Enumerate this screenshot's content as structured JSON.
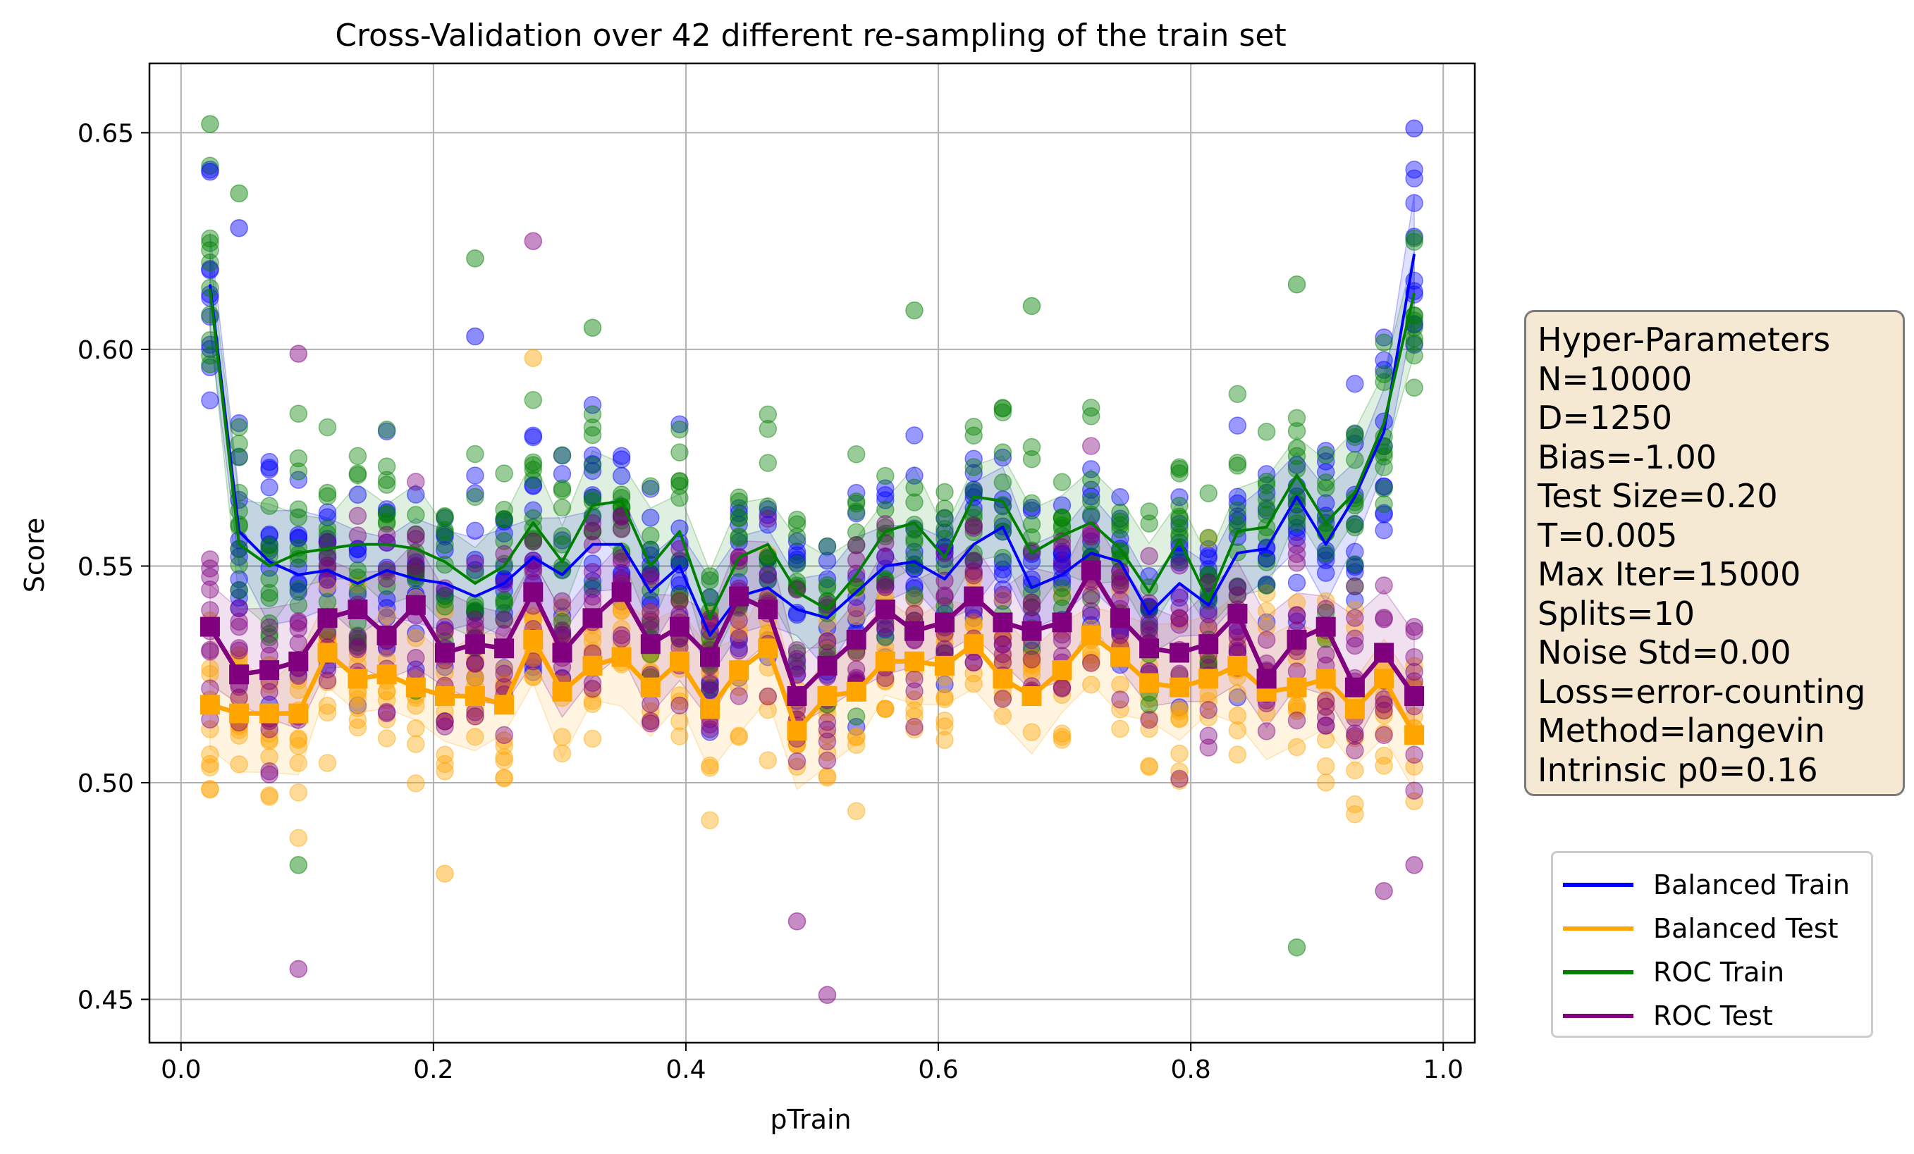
{
  "chart_data": {
    "type": "line",
    "title": "Cross-Validation over 42 different re-sampling of the train set",
    "xlabel": "pTrain",
    "ylabel": "Score",
    "xlim": [
      -0.025,
      1.025
    ],
    "ylim": [
      0.44,
      0.666
    ],
    "xticks": [
      "0.0",
      "0.2",
      "0.4",
      "0.6",
      "0.8",
      "1.0"
    ],
    "yticks": [
      "0.45",
      "0.50",
      "0.55",
      "0.60",
      "0.65"
    ],
    "grid": true,
    "legend_position": "right-bottom",
    "x": [
      0.023,
      0.046,
      0.07,
      0.093,
      0.116,
      0.14,
      0.163,
      0.186,
      0.209,
      0.233,
      0.256,
      0.279,
      0.302,
      0.326,
      0.349,
      0.372,
      0.395,
      0.419,
      0.442,
      0.465,
      0.488,
      0.512,
      0.535,
      0.558,
      0.581,
      0.605,
      0.628,
      0.651,
      0.674,
      0.698,
      0.721,
      0.744,
      0.767,
      0.791,
      0.814,
      0.837,
      0.86,
      0.884,
      0.907,
      0.93,
      0.953,
      0.977
    ],
    "series": [
      {
        "name": "Balanced Train",
        "color": "#0000ff",
        "marker": "none",
        "line_width": 3,
        "values": [
          0.615,
          0.558,
          0.551,
          0.548,
          0.549,
          0.546,
          0.549,
          0.547,
          0.546,
          0.543,
          0.546,
          0.552,
          0.548,
          0.555,
          0.555,
          0.544,
          0.55,
          0.534,
          0.543,
          0.545,
          0.54,
          0.538,
          0.544,
          0.55,
          0.551,
          0.547,
          0.555,
          0.559,
          0.545,
          0.548,
          0.553,
          0.551,
          0.539,
          0.546,
          0.541,
          0.553,
          0.554,
          0.566,
          0.555,
          0.566,
          0.581,
          0.622
        ]
      },
      {
        "name": "Balanced Test",
        "color": "#ffa500",
        "marker": "square",
        "line_width": 5,
        "values": [
          0.518,
          0.516,
          0.516,
          0.516,
          0.53,
          0.524,
          0.525,
          0.522,
          0.52,
          0.52,
          0.518,
          0.533,
          0.521,
          0.527,
          0.529,
          0.522,
          0.528,
          0.517,
          0.526,
          0.531,
          0.512,
          0.52,
          0.521,
          0.528,
          0.528,
          0.527,
          0.532,
          0.524,
          0.52,
          0.526,
          0.534,
          0.529,
          0.523,
          0.522,
          0.524,
          0.527,
          0.521,
          0.522,
          0.524,
          0.517,
          0.524,
          0.511
        ]
      },
      {
        "name": "ROC Train",
        "color": "#008000",
        "marker": "none",
        "line_width": 3,
        "values": [
          0.614,
          0.555,
          0.55,
          0.553,
          0.554,
          0.555,
          0.555,
          0.554,
          0.551,
          0.546,
          0.55,
          0.56,
          0.551,
          0.564,
          0.565,
          0.55,
          0.558,
          0.538,
          0.552,
          0.555,
          0.544,
          0.54,
          0.548,
          0.558,
          0.56,
          0.552,
          0.566,
          0.565,
          0.553,
          0.557,
          0.56,
          0.554,
          0.544,
          0.556,
          0.542,
          0.558,
          0.559,
          0.571,
          0.56,
          0.567,
          0.583,
          0.613
        ]
      },
      {
        "name": "ROC Test",
        "color": "#800080",
        "marker": "square",
        "line_width": 5,
        "values": [
          0.536,
          0.525,
          0.526,
          0.528,
          0.538,
          0.54,
          0.534,
          0.541,
          0.53,
          0.532,
          0.531,
          0.544,
          0.53,
          0.538,
          0.544,
          0.532,
          0.536,
          0.529,
          0.543,
          0.54,
          0.52,
          0.527,
          0.533,
          0.54,
          0.535,
          0.537,
          0.543,
          0.537,
          0.535,
          0.537,
          0.549,
          0.538,
          0.531,
          0.53,
          0.532,
          0.539,
          0.524,
          0.533,
          0.536,
          0.522,
          0.53,
          0.52
        ]
      }
    ],
    "scatter_outliers": [
      {
        "series": "ROC Train",
        "x": 0.023,
        "y": 0.652
      },
      {
        "series": "Balanced Train",
        "x": 0.023,
        "y": 0.641
      },
      {
        "series": "ROC Train",
        "x": 0.046,
        "y": 0.636
      },
      {
        "series": "Balanced Train",
        "x": 0.046,
        "y": 0.628
      },
      {
        "series": "ROC Train",
        "x": 0.093,
        "y": 0.481
      },
      {
        "series": "ROC Test",
        "x": 0.093,
        "y": 0.457
      },
      {
        "series": "ROC Test",
        "x": 0.093,
        "y": 0.599
      },
      {
        "series": "ROC Train",
        "x": 0.233,
        "y": 0.621
      },
      {
        "series": "Balanced Train",
        "x": 0.233,
        "y": 0.603
      },
      {
        "series": "Balanced Test",
        "x": 0.209,
        "y": 0.479
      },
      {
        "series": "ROC Test",
        "x": 0.279,
        "y": 0.625
      },
      {
        "series": "Balanced Test",
        "x": 0.279,
        "y": 0.598
      },
      {
        "series": "ROC Train",
        "x": 0.326,
        "y": 0.605
      },
      {
        "series": "ROC Test",
        "x": 0.488,
        "y": 0.468
      },
      {
        "series": "ROC Test",
        "x": 0.512,
        "y": 0.451
      },
      {
        "series": "ROC Train",
        "x": 0.581,
        "y": 0.609
      },
      {
        "series": "ROC Train",
        "x": 0.674,
        "y": 0.61
      },
      {
        "series": "ROC Train",
        "x": 0.884,
        "y": 0.615
      },
      {
        "series": "ROC Train",
        "x": 0.884,
        "y": 0.462
      },
      {
        "series": "Balanced Train",
        "x": 0.977,
        "y": 0.651
      },
      {
        "series": "ROC Test",
        "x": 0.953,
        "y": 0.475
      },
      {
        "series": "ROC Test",
        "x": 0.977,
        "y": 0.481
      }
    ]
  },
  "hyper_parameters": {
    "lines": [
      "Hyper-Parameters",
      "N=10000",
      "D=1250",
      "Bias=-1.00",
      "Test Size=0.20",
      "T=0.005",
      "Max Iter=15000",
      "Splits=10",
      "Noise Std=0.00",
      "Loss=error-counting",
      "Method=langevin",
      "Intrinsic p0=0.16"
    ]
  }
}
